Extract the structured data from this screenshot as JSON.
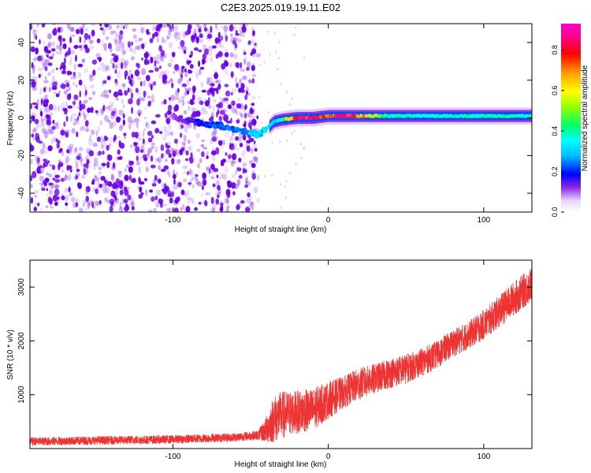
{
  "figure_title": "C2E3.2025.019.19.11.E02",
  "colors": {
    "snr_line": "#ee3333",
    "dot_base": "#8a33f0",
    "dot_dense": "#6a00e8",
    "axis": "#000000"
  },
  "colorbar": {
    "label": "Normalized spectral amplitude",
    "ticks": [
      "0.0",
      "0.2",
      "0.4",
      "0.6",
      "0.8"
    ],
    "tick_values": [
      0.0,
      0.2,
      0.4,
      0.6,
      0.8
    ],
    "range": [
      0,
      0.93
    ]
  },
  "chart_data": [
    {
      "type": "heatmap",
      "title": "C2E3.2025.019.19.11.E02",
      "xlabel": "Height of straight line (km)",
      "ylabel": "Frequency (Hz)",
      "xlim": [
        -192,
        131
      ],
      "ylim": [
        -50,
        50
      ],
      "x_ticks": [
        -100,
        0,
        100
      ],
      "x_tick_labels": [
        "-100",
        "0",
        "100"
      ],
      "y_ticks": [
        -40,
        -20,
        0,
        20,
        40
      ],
      "y_tick_labels": [
        "-40",
        "-20",
        "0",
        "20",
        "40"
      ],
      "colormap": "rainbow (white-purple-blue-cyan-green-yellow-red-magenta)",
      "noise_region": {
        "x_range": [
          -192,
          -45
        ],
        "amplitude": 0.05
      },
      "signal_ridge": {
        "x": [
          -100,
          -90,
          -80,
          -70,
          -60,
          -50,
          -45,
          -40,
          -35,
          -30,
          -20,
          -10,
          0,
          10,
          20,
          40,
          60,
          80,
          100,
          120,
          131
        ],
        "frequency_hz": [
          0,
          -1,
          -3,
          -4,
          -6,
          -8,
          -9,
          -6,
          -2,
          -1,
          0,
          0,
          1,
          1,
          1,
          1,
          1,
          1,
          1,
          1,
          1
        ],
        "peak_amplitude": [
          0.1,
          0.15,
          0.2,
          0.25,
          0.25,
          0.3,
          0.3,
          0.35,
          0.3,
          0.4,
          0.9,
          0.85,
          0.8,
          0.9,
          0.75,
          0.4,
          0.4,
          0.4,
          0.4,
          0.4,
          0.4
        ]
      }
    },
    {
      "type": "line",
      "xlabel": "Height of straight line (km)",
      "ylabel": "SNR (10 * v/v)",
      "xlim": [
        -192,
        131
      ],
      "ylim": [
        0,
        3500
      ],
      "x_ticks": [
        -100,
        0,
        100
      ],
      "x_tick_labels": [
        "-100",
        "0",
        "100"
      ],
      "y_ticks": [
        1000,
        2000,
        3000
      ],
      "y_tick_labels": [
        "1000",
        "2000",
        "3000"
      ],
      "series": [
        {
          "x": [
            -192,
            -150,
            -100,
            -60,
            -45,
            -40,
            -35,
            -30,
            -20,
            -10,
            0,
            10,
            20,
            30,
            40,
            50,
            60,
            70,
            80,
            90,
            100,
            110,
            120,
            131
          ],
          "y": [
            130,
            150,
            170,
            210,
            250,
            350,
            550,
            620,
            680,
            720,
            900,
            1050,
            1200,
            1300,
            1400,
            1480,
            1600,
            1750,
            1950,
            2100,
            2300,
            2550,
            2800,
            3050
          ],
          "noise_amplitude": [
            80,
            80,
            80,
            80,
            90,
            250,
            450,
            450,
            400,
            400,
            350,
            300,
            300,
            280,
            280,
            280,
            260,
            260,
            260,
            260,
            280,
            300,
            320,
            320
          ]
        }
      ]
    }
  ]
}
